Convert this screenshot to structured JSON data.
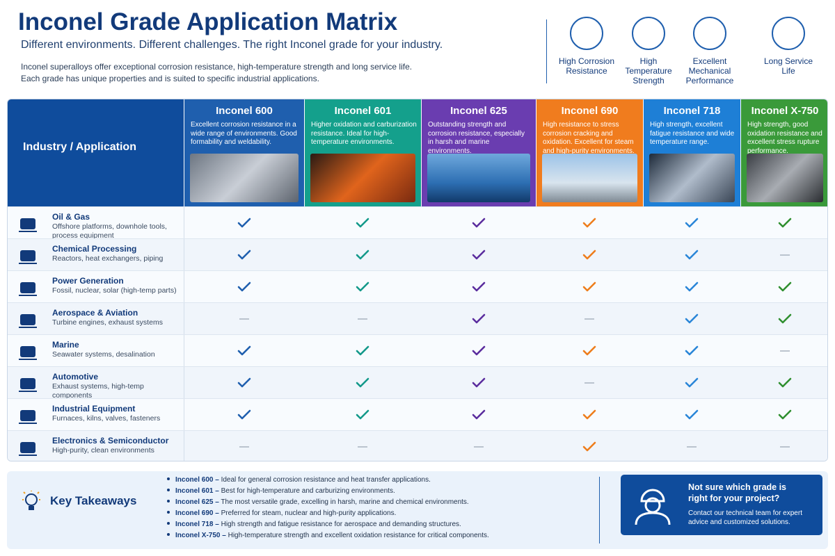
{
  "header": {
    "title": "Inconel Grade Application Matrix",
    "subtitle": "Different environments. Different challenges. The right Inconel grade for your industry.",
    "description": [
      "Inconel superalloys offer exceptional corrosion resistance, high-temperature strength and long service life.",
      "Each grade has unique properties and is suited to specific industrial applications."
    ],
    "features": [
      "High Corrosion Resistance",
      "High Temperature Strength",
      "Excellent Mechanical Performance",
      "Long Service Life"
    ]
  },
  "table": {
    "corner": "Industry / Application",
    "grades": [
      {
        "name": "Inconel 600",
        "description": "Excellent corrosion resistance in a wide range of environments. Good formability and weldability.",
        "color": "#1f5fae",
        "check_color": "#1f5fae"
      },
      {
        "name": "Inconel 601",
        "description": "Higher oxidation and carburization resistance. Ideal for high-temperature environments.",
        "color": "#14a08c",
        "check_color": "#13998a"
      },
      {
        "name": "Inconel 625",
        "description": "Outstanding strength and corrosion resistance, especially in harsh and marine environments.",
        "color": "#6a3db0",
        "check_color": "#5b2d9e"
      },
      {
        "name": "Inconel 690",
        "description": "High resistance to stress corrosion cracking and oxidation. Excellent for steam and high-purity environments.",
        "color": "#f07c1e",
        "check_color": "#ee7d1c"
      },
      {
        "name": "Inconel 718",
        "description": "High strength, excellent fatigue resistance and wide temperature range.",
        "color": "#1e7fd6",
        "check_color": "#2a86d8"
      },
      {
        "name": "Inconel X-750",
        "description": "High strength, good oxidation resistance and excellent stress rupture performance.",
        "color": "#3a9a3a",
        "check_color": "#2f8f2f"
      }
    ],
    "rows": [
      {
        "name": "Oil & Gas",
        "detail": "Offshore platforms, downhole tools, process equipment",
        "cells": [
          true,
          true,
          true,
          true,
          true,
          true
        ]
      },
      {
        "name": "Chemical Processing",
        "detail": "Reactors, heat exchangers, piping",
        "cells": [
          true,
          true,
          true,
          true,
          true,
          false
        ]
      },
      {
        "name": "Power Generation",
        "detail": "Fossil, nuclear, solar (high-temp parts)",
        "cells": [
          true,
          true,
          true,
          true,
          true,
          true
        ]
      },
      {
        "name": "Aerospace & Aviation",
        "detail": "Turbine engines, exhaust systems",
        "cells": [
          false,
          false,
          true,
          false,
          true,
          true
        ]
      },
      {
        "name": "Marine",
        "detail": "Seawater systems, desalination",
        "cells": [
          true,
          true,
          true,
          true,
          true,
          false
        ]
      },
      {
        "name": "Automotive",
        "detail": "Exhaust systems, high-temp components",
        "cells": [
          true,
          true,
          true,
          false,
          true,
          true
        ]
      },
      {
        "name": "Industrial Equipment",
        "detail": "Furnaces, kilns, valves, fasteners",
        "cells": [
          true,
          true,
          true,
          true,
          true,
          true
        ]
      },
      {
        "name": "Electronics & Semiconductor",
        "detail": "High-purity, clean environments",
        "cells": [
          false,
          false,
          false,
          true,
          false,
          false
        ]
      }
    ]
  },
  "takeaways": {
    "title": "Key Takeaways",
    "items": [
      {
        "grade": "Inconel 600 –",
        "text": "Ideal for general corrosion resistance and heat transfer applications."
      },
      {
        "grade": "Inconel 601 –",
        "text": "Best for high-temperature and carburizing environments."
      },
      {
        "grade": "Inconel 625 –",
        "text": "The most versatile grade, excelling in harsh, marine and chemical environments."
      },
      {
        "grade": "Inconel 690 –",
        "text": "Preferred for steam, nuclear and high-purity applications."
      },
      {
        "grade": "Inconel 718 –",
        "text": "High strength and fatigue resistance for aerospace and demanding structures."
      },
      {
        "grade": "Inconel X-750 –",
        "text": "High-temperature strength and excellent oxidation resistance for critical components."
      }
    ]
  },
  "cta": {
    "title": "Not sure which grade is right for your project?",
    "text": "Contact our technical team for expert advice and customized solutions."
  }
}
